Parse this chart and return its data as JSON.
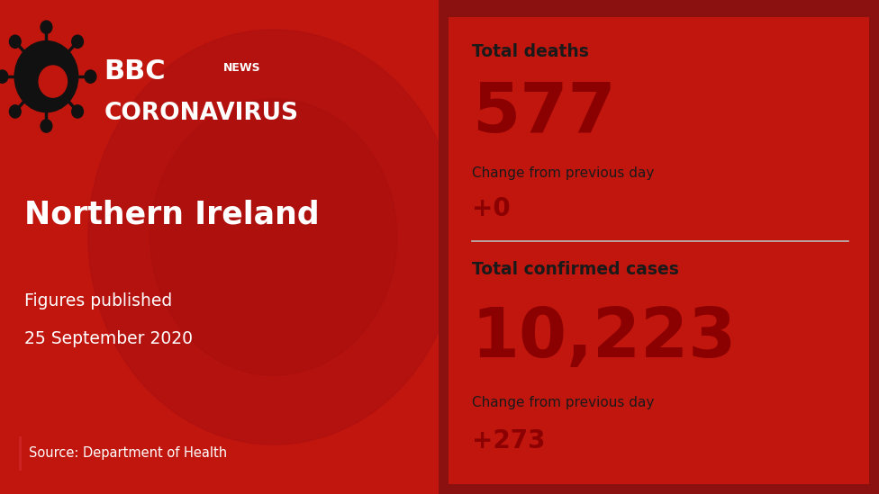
{
  "left_bg_color": "#c0160e",
  "right_bg_color": "#e8e4e4",
  "border_color": "#8b1010",
  "title_region": "Northern Ireland",
  "date_line1": "Figures published",
  "date_line2": "25 September 2020",
  "source_text": "Source: Department of Health",
  "bbc_text": "BBC",
  "news_text": "NEWS",
  "coronavirus_text": "CORONAVIRUS",
  "total_deaths_label": "Total deaths",
  "total_deaths_value": "577",
  "deaths_change_label": "Change from previous day",
  "deaths_change_value": "+0",
  "total_cases_label": "Total confirmed cases",
  "total_cases_value": "10,223",
  "cases_change_label": "Change from previous day",
  "cases_change_value": "+273",
  "dark_red": "#8b0000",
  "text_dark": "#1a1a1a",
  "white": "#ffffff",
  "source_bar_color": "#cc2222",
  "divider_color": "#bbbbbb",
  "right_border_color": "#8b1010"
}
